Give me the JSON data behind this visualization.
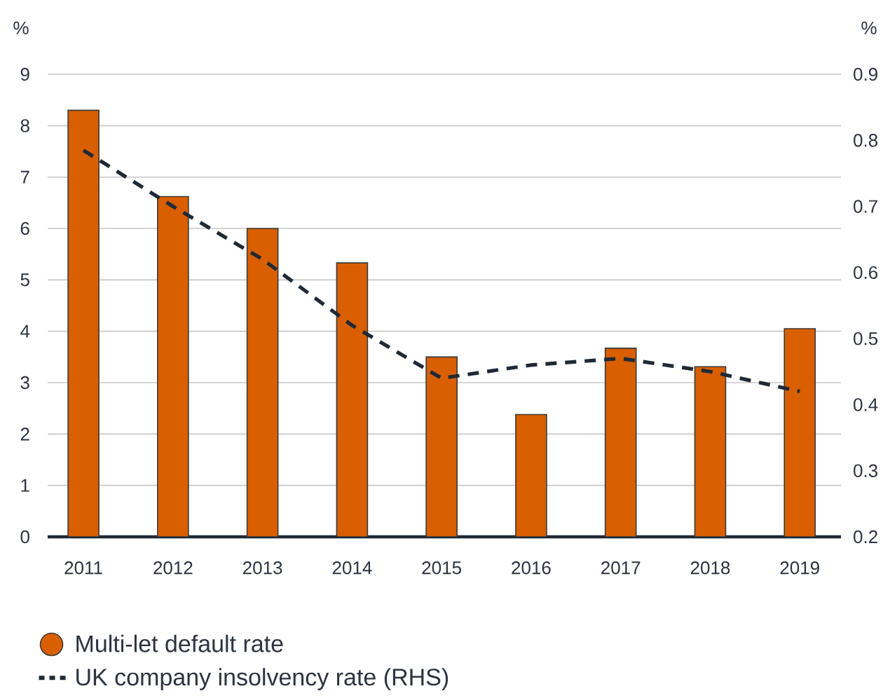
{
  "chart_data": {
    "type": "bar",
    "categories": [
      "2011",
      "2012",
      "2013",
      "2014",
      "2015",
      "2016",
      "2017",
      "2018",
      "2019"
    ],
    "ylabel": "%",
    "y2label": "%",
    "ylim": [
      0,
      9
    ],
    "yticks": [
      0,
      1,
      2,
      3,
      4,
      5,
      6,
      7,
      8,
      9
    ],
    "y2lim": [
      0.2,
      0.9
    ],
    "y2ticks": [
      0.2,
      0.3,
      0.4,
      0.5,
      0.6,
      0.7,
      0.8,
      0.9
    ],
    "grid": "y",
    "legend": "bottom",
    "series": [
      {
        "name": "Multi-let default rate",
        "color": "#d95f00",
        "values": [
          8.3,
          6.62,
          6.0,
          5.33,
          3.5,
          2.38,
          3.67,
          3.31,
          4.05
        ]
      },
      {
        "name": "UK company insolvency rate (RHS)",
        "type": "line",
        "axis": "y2",
        "color": "#1f2a36",
        "line_style": "dashed",
        "values": [
          0.785,
          0.7,
          0.62,
          0.52,
          0.44,
          0.46,
          0.47,
          0.45,
          0.42
        ]
      }
    ]
  }
}
